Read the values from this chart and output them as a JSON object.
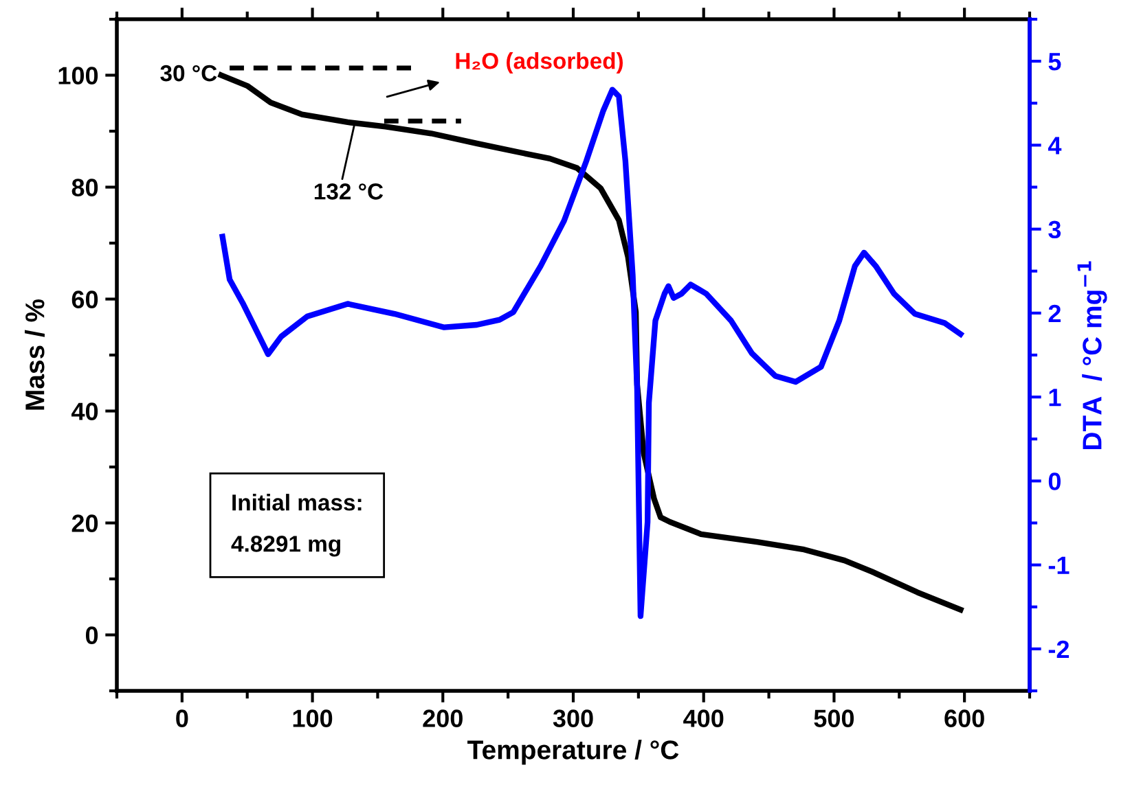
{
  "chart_data": {
    "type": "line",
    "xlabel": "Temperature / °C",
    "ylabel": "Mass / %",
    "y2label": "DTA  / °C mg$^{−1}$",
    "xlim": [
      -50,
      650
    ],
    "xticks": [
      {
        "value": -50,
        "label": null
      },
      0,
      {
        "value": 50,
        "label": null
      },
      100,
      {
        "value": 150,
        "label": null
      },
      200,
      {
        "value": 250,
        "label": null
      },
      300,
      {
        "value": 350,
        "label": null
      },
      400,
      {
        "value": 450,
        "label": null
      },
      500,
      {
        "value": 550,
        "label": null
      },
      600,
      {
        "value": 650,
        "label": null
      }
    ],
    "ylim": [
      -10,
      110
    ],
    "yticks": [
      {
        "value": -10,
        "label": null
      },
      0,
      {
        "value": 10,
        "label": null
      },
      20,
      {
        "value": 30,
        "label": null
      },
      40,
      {
        "value": 50,
        "label": null
      },
      60,
      {
        "value": 70,
        "label": null
      },
      80,
      {
        "value": 90,
        "label": null
      },
      100,
      {
        "value": 110,
        "label": null
      }
    ],
    "y2lim": [
      -2.5,
      5.5
    ],
    "y2ticks": [
      {
        "value": -2.5,
        "label": null
      },
      -2,
      {
        "value": -1.5,
        "label": null
      },
      -1,
      {
        "value": -0.5,
        "label": null
      },
      0,
      {
        "value": 0.5,
        "label": null
      },
      1,
      {
        "value": 1.5,
        "label": null
      },
      2,
      {
        "value": 2.5,
        "label": null
      },
      3,
      {
        "value": 3.5,
        "label": null
      },
      4,
      {
        "value": 4.5,
        "label": null
      },
      5,
      {
        "value": 5.5,
        "label": null
      }
    ],
    "grid": false,
    "legend": false,
    "marker": "none",
    "series": [
      {
        "color": "#000000",
        "x": [
          30,
          50,
          68,
          92,
          127,
          156,
          191,
          226,
          261,
          282,
          303,
          321,
          335,
          342,
          348,
          349,
          354,
          362,
          367,
          374,
          398,
          441,
          476,
          508,
          529,
          564,
          597
        ],
        "values": [
          100,
          98.1,
          95.1,
          93,
          91.6,
          90.8,
          89.6,
          87.8,
          86.1,
          85.1,
          83.4,
          79.8,
          74.1,
          67.5,
          57.7,
          44.7,
          32.5,
          24.3,
          21,
          20.2,
          18,
          16.6,
          15.3,
          13.3,
          11.3,
          7.6,
          4.5
        ]
      },
      {
        "color": "#0000ff",
        "axis": "y2",
        "x": [
          31,
          36.5,
          46.5,
          66,
          76,
          96,
          127,
          163,
          201,
          226,
          243.5,
          254,
          275,
          293,
          310,
          323,
          330,
          335,
          340,
          345.6,
          349,
          351.6,
          357,
          358,
          363,
          370,
          373,
          377,
          383,
          390,
          402,
          421,
          437,
          455,
          470.5,
          490,
          504,
          516,
          523,
          532,
          546,
          562,
          585,
          597
        ],
        "values": [
          2.91,
          2.4,
          2.12,
          1.51,
          1.72,
          1.96,
          2.11,
          1.99,
          1.83,
          1.86,
          1.92,
          2.01,
          2.56,
          3.1,
          3.81,
          4.41,
          4.66,
          4.58,
          3.81,
          2.45,
          1.09,
          -1.61,
          -0.49,
          0.93,
          1.91,
          2.23,
          2.32,
          2.18,
          2.23,
          2.34,
          2.23,
          1.91,
          1.52,
          1.25,
          1.18,
          1.36,
          1.91,
          2.56,
          2.72,
          2.56,
          2.23,
          1.99,
          1.88,
          1.75
        ]
      },
      {
        "color": "#000000",
        "line_style": "dashed",
        "x": [
          36.5,
          178
        ],
        "values": [
          101.3,
          101.3
        ]
      },
      {
        "color": "#000000",
        "line_style": "dashed",
        "x": [
          155,
          214
        ],
        "values": [
          91.8,
          91.8
        ]
      }
    ],
    "annotations": [
      {
        "text": "30 °C",
        "x": 30,
        "y": 100
      },
      {
        "text": "132 °C",
        "x": 132,
        "y": 91
      },
      "H₂O (adsorbed)",
      "Initial mass:\n4.8291 mg"
    ]
  }
}
